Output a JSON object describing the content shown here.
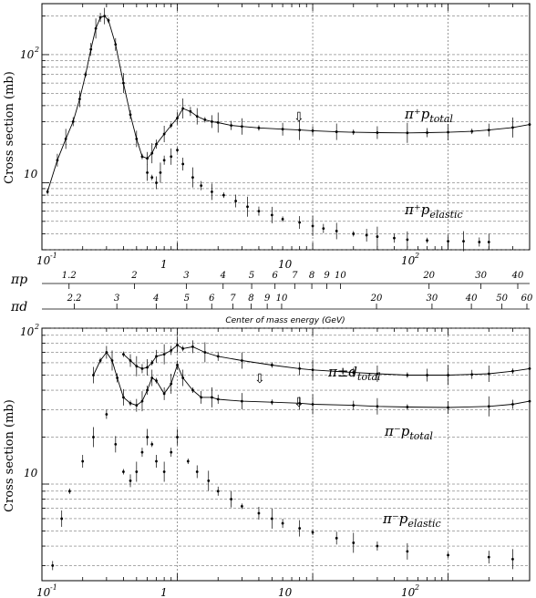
{
  "chart_data": [
    {
      "type": "scatter",
      "title": "",
      "ylabel": "Cross section (mb)",
      "xscale": "log",
      "yscale": "log",
      "xlim": [
        0.1,
        400
      ],
      "ylim": [
        3,
        250
      ],
      "grid": "dashed",
      "ytick_labels": [
        "10",
        "10²"
      ],
      "series": [
        {
          "name": "π⁺p total",
          "label_main": "π⁺p",
          "label_sub": "total",
          "x": [
            0.11,
            0.13,
            0.15,
            0.17,
            0.19,
            0.21,
            0.23,
            0.25,
            0.27,
            0.29,
            0.31,
            0.35,
            0.4,
            0.45,
            0.5,
            0.55,
            0.6,
            0.65,
            0.7,
            0.8,
            0.9,
            1.0,
            1.1,
            1.25,
            1.4,
            1.6,
            1.8,
            2,
            2.5,
            3,
            4,
            6,
            8,
            10,
            15,
            20,
            30,
            50,
            70,
            100,
            150,
            200,
            300,
            400
          ],
          "y": [
            8.5,
            15,
            22,
            30,
            45,
            70,
            110,
            160,
            195,
            200,
            185,
            120,
            60,
            34,
            22,
            16,
            15.5,
            17,
            20,
            24,
            28,
            32,
            38,
            36,
            33,
            31,
            30,
            29.5,
            28,
            27.5,
            26.8,
            26.2,
            25.8,
            25.5,
            25,
            24.8,
            24.6,
            24.5,
            24.6,
            24.8,
            25.2,
            25.8,
            27,
            28.5
          ]
        },
        {
          "name": "π⁺p elastic",
          "label_main": "π⁺p",
          "label_sub": "elastic",
          "x": [
            0.6,
            0.65,
            0.7,
            0.75,
            0.8,
            0.9,
            1.0,
            1.1,
            1.3,
            1.5,
            1.8,
            2.2,
            2.7,
            3.3,
            4,
            5,
            6,
            8,
            10,
            12,
            15,
            20,
            25,
            30,
            40,
            50,
            70,
            100,
            130,
            170,
            200
          ],
          "y": [
            12,
            11,
            10,
            12,
            15,
            16,
            18,
            14,
            11,
            9.5,
            8.5,
            8,
            7.2,
            6.5,
            6.0,
            5.6,
            5.2,
            4.9,
            4.6,
            4.4,
            4.2,
            4.0,
            3.9,
            3.8,
            3.7,
            3.6,
            3.55,
            3.5,
            3.5,
            3.45,
            3.45
          ]
        }
      ],
      "annotations": [
        "⇩"
      ]
    },
    {
      "type": "scatter",
      "title": "",
      "xlabel": "Center of mass energy (GeV)",
      "ylabel": "Cross section (mb)",
      "xscale": "log",
      "yscale": "log",
      "xlim": [
        0.1,
        400
      ],
      "ylim": [
        2.4,
        100
      ],
      "grid": "dashed",
      "xtick_labels": [
        "10⁻¹",
        "1",
        "10",
        "10²"
      ],
      "ytick_labels": [
        "10",
        "10²"
      ],
      "series": [
        {
          "name": "π±d total",
          "label_main": "π±d",
          "label_sub": "total",
          "x": [
            0.4,
            0.45,
            0.5,
            0.55,
            0.6,
            0.65,
            0.7,
            0.8,
            0.9,
            1.0,
            1.1,
            1.3,
            1.6,
            2,
            3,
            5,
            8,
            10,
            20,
            30,
            50,
            70,
            100,
            150,
            200,
            300,
            400
          ],
          "y": [
            68,
            62,
            57,
            55,
            56,
            60,
            66,
            68,
            72,
            78,
            74,
            76,
            70,
            66,
            62,
            58,
            55,
            54,
            52,
            51,
            50,
            50,
            50,
            50.5,
            51,
            53,
            55
          ]
        },
        {
          "name": "π⁻p total",
          "label_main": "π⁻p",
          "label_sub": "total",
          "x": [
            0.24,
            0.27,
            0.3,
            0.33,
            0.36,
            0.4,
            0.45,
            0.5,
            0.55,
            0.6,
            0.65,
            0.7,
            0.8,
            0.9,
            1.0,
            1.1,
            1.3,
            1.5,
            1.8,
            2,
            3,
            5,
            8,
            10,
            20,
            30,
            50,
            100,
            200,
            300,
            400
          ],
          "y": [
            50,
            62,
            70,
            62,
            48,
            36,
            33,
            32,
            34,
            40,
            48,
            46,
            38,
            44,
            58,
            48,
            40,
            36,
            36,
            35,
            34,
            33.5,
            33,
            32.5,
            32,
            31.5,
            31.2,
            31,
            31.5,
            32.5,
            34
          ]
        },
        {
          "name": "π⁻p elastic",
          "label_main": "π⁻p",
          "label_sub": "elastic",
          "x": [
            0.12,
            0.14,
            0.16,
            0.2,
            0.24,
            0.3,
            0.35,
            0.4,
            0.45,
            0.5,
            0.55,
            0.6,
            0.65,
            0.7,
            0.8,
            0.9,
            1.0,
            1.2,
            1.4,
            1.7,
            2,
            2.5,
            3,
            4,
            5,
            6,
            8,
            10,
            15,
            20,
            30,
            50,
            100,
            200,
            300
          ],
          "y": [
            3,
            6,
            9,
            14,
            20,
            28,
            18,
            12,
            10.5,
            12,
            16,
            20,
            18,
            14,
            12,
            16,
            20,
            14,
            12,
            10.5,
            9,
            8,
            7.2,
            6.5,
            6,
            5.6,
            5.2,
            4.9,
            4.5,
            4.2,
            4.0,
            3.7,
            3.5,
            3.4,
            3.3
          ]
        }
      ],
      "annotations": [
        "⇩",
        "⇩"
      ]
    }
  ],
  "middle_axes": {
    "pi_p_label": "πp",
    "pi_d_label": "πd",
    "pi_p_ticks": [
      "1.2",
      "2",
      "3",
      "4",
      "5",
      "6",
      "7",
      "8",
      "9",
      "10",
      "20",
      "30",
      "40"
    ],
    "pi_d_ticks": [
      "2.2",
      "3",
      "4",
      "5",
      "6",
      "7",
      "8",
      "9",
      "10",
      "20",
      "30",
      "40",
      "50",
      "60"
    ],
    "top_chart_xticks": [
      "10⁻¹",
      "1",
      "10",
      "10²"
    ]
  }
}
